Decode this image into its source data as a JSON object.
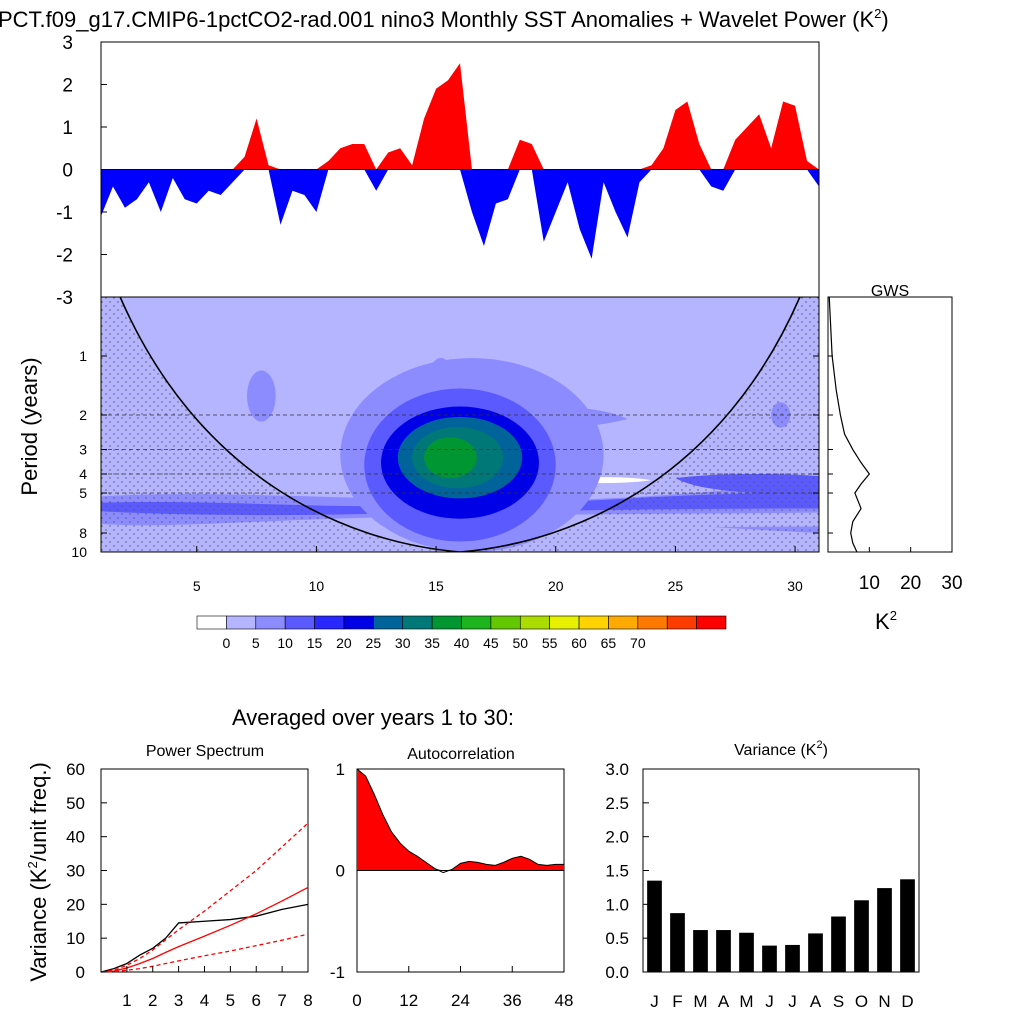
{
  "figure": {
    "title": "PCT.f09_g17.CMIP6-1pctCO2-rad.001 nino3 Monthly SST Anomalies + Wavelet Power (K",
    "title_sup": "2",
    "title_close": ")",
    "averaged_label": "Averaged over years 1 to 30:",
    "pos_color": "#ff0000",
    "neg_color": "#0000ff"
  },
  "chart_data": [
    {
      "id": "anomalies",
      "type": "area",
      "xlim": [
        1,
        31
      ],
      "ylim": [
        -3,
        3
      ],
      "yticks": [
        -3,
        -2,
        -1,
        0,
        1,
        2,
        3
      ],
      "tick_labels": [
        "-3",
        "-2",
        "-1",
        "0",
        "1",
        "2",
        "3"
      ],
      "x": [
        1.0,
        1.5,
        2.0,
        2.5,
        3.0,
        3.5,
        4.0,
        4.5,
        5.0,
        5.5,
        6.0,
        6.5,
        7.0,
        7.5,
        8.0,
        8.5,
        9.0,
        9.5,
        10.0,
        10.5,
        11.0,
        11.5,
        12.0,
        12.5,
        13.0,
        13.5,
        14.0,
        14.5,
        15.0,
        15.5,
        16.0,
        16.5,
        17.0,
        17.5,
        18.0,
        18.5,
        19.0,
        19.5,
        20.0,
        20.5,
        21.0,
        21.5,
        22.0,
        22.5,
        23.0,
        23.5,
        24.0,
        24.5,
        25.0,
        25.5,
        26.0,
        26.5,
        27.0,
        27.5,
        28.0,
        28.5,
        29.0,
        29.5,
        30.0,
        30.5,
        31.0
      ],
      "y": [
        -1.1,
        -0.4,
        -0.9,
        -0.7,
        -0.3,
        -1.0,
        -0.2,
        -0.7,
        -0.8,
        -0.5,
        -0.6,
        -0.3,
        0.3,
        1.2,
        0.1,
        -1.3,
        -0.5,
        -0.6,
        -1.0,
        0.2,
        0.5,
        0.6,
        0.6,
        -0.5,
        0.4,
        0.5,
        0.1,
        1.2,
        1.9,
        2.1,
        2.5,
        -1.0,
        -1.8,
        -0.8,
        -0.7,
        0.7,
        0.6,
        -1.7,
        -1.0,
        -0.3,
        -1.4,
        -2.1,
        -0.3,
        -1.0,
        -1.6,
        -0.3,
        0.1,
        0.5,
        1.4,
        1.6,
        0.6,
        -0.4,
        -0.5,
        0.7,
        1.0,
        1.3,
        0.5,
        1.6,
        1.5,
        0.2,
        -0.4
      ]
    },
    {
      "id": "wavelet",
      "type": "heatmap",
      "xticks": [
        5,
        10,
        15,
        20,
        25,
        30
      ],
      "xtick_labels": [
        "5",
        "10",
        "15",
        "20",
        "25",
        "30"
      ],
      "ylabel": "Period (years)",
      "yticks": [
        1,
        2,
        3,
        4,
        5,
        8,
        10
      ],
      "ytick_labels": [
        "1",
        "2",
        "3",
        "4",
        "5",
        "8",
        "10"
      ],
      "xlim": [
        1,
        31
      ],
      "ylim": [
        0.5,
        10
      ],
      "colorbar_labels": [
        "0",
        "5",
        "10",
        "15",
        "20",
        "25",
        "30",
        "35",
        "40",
        "45",
        "50",
        "55",
        "60",
        "65",
        "70"
      ],
      "colorbar_colors": [
        "#ffffff",
        "#b4b4ff",
        "#8c8cff",
        "#5a5aff",
        "#2828ff",
        "#0000e6",
        "#00649a",
        "#007878",
        "#009632",
        "#1eb41e",
        "#64c800",
        "#aadc00",
        "#e6f000",
        "#ffd200",
        "#ffaa00",
        "#ff7800",
        "#ff3c00",
        "#ff0000"
      ],
      "blobs": [
        {
          "x": 7.7,
          "period": 1.6,
          "rx": 0.6,
          "ry": 0.1,
          "level": 2
        },
        {
          "x": 15.2,
          "period": 1.3,
          "rx": 0.5,
          "ry": 0.08,
          "level": 2
        },
        {
          "x": 29.4,
          "period": 2.0,
          "rx": 0.4,
          "ry": 0.05,
          "level": 2
        },
        {
          "x": 16.5,
          "period": 3.2,
          "rx": 5.5,
          "ry": 0.38,
          "level": 2
        },
        {
          "x": 16.0,
          "period": 3.6,
          "rx": 4.0,
          "ry": 0.3,
          "level": 3
        },
        {
          "x": 16.0,
          "period": 3.5,
          "rx": 3.3,
          "ry": 0.22,
          "level": 5
        },
        {
          "x": 16.0,
          "period": 3.3,
          "rx": 2.6,
          "ry": 0.16,
          "level": 6
        },
        {
          "x": 15.9,
          "period": 3.3,
          "rx": 1.9,
          "ry": 0.12,
          "level": 7
        },
        {
          "x": 15.6,
          "period": 3.3,
          "rx": 1.1,
          "ry": 0.08,
          "level": 8
        }
      ],
      "coi_max_period": 10
    },
    {
      "id": "gws",
      "type": "line",
      "title": "GWS",
      "xlabel": "K",
      "xlabel_sup": "2",
      "xticks": [
        10,
        20,
        30
      ],
      "xtick_labels": [
        "10",
        "20",
        "30"
      ],
      "xlim": [
        0,
        30
      ],
      "period": [
        0.5,
        1.0,
        1.5,
        2.0,
        2.5,
        3.0,
        3.5,
        4.0,
        4.5,
        5.0,
        6.0,
        7.0,
        8.0,
        9.0,
        10.0
      ],
      "power": [
        0.3,
        1.0,
        2.0,
        3.0,
        4.0,
        6.0,
        8.0,
        10.0,
        8.0,
        6.5,
        8.0,
        6.0,
        5.5,
        6.0,
        7.0
      ]
    },
    {
      "id": "power_spectrum",
      "type": "line",
      "title": "Power Spectrum",
      "ylabel": "Variance (K",
      "ylabel_sup": "2",
      "ylabel_tail": "/unit freq.)",
      "xlim": [
        0,
        8
      ],
      "ylim": [
        0,
        60
      ],
      "xticks": [
        1,
        2,
        3,
        4,
        5,
        6,
        7,
        8
      ],
      "xtick_labels": [
        "1",
        "2",
        "3",
        "4",
        "5",
        "6",
        "7",
        "8"
      ],
      "yticks": [
        0,
        10,
        20,
        30,
        40,
        50,
        60
      ],
      "ytick_labels": [
        "0",
        "10",
        "20",
        "30",
        "40",
        "50",
        "60"
      ],
      "x": [
        0,
        0.5,
        1.0,
        1.5,
        2.0,
        2.5,
        3.0,
        4.0,
        5.0,
        6.0,
        7.0,
        8.0
      ],
      "series": [
        {
          "values": [
            0,
            1,
            2.5,
            5,
            7,
            10,
            14.5,
            15,
            15.5,
            16.5,
            18.5,
            20
          ],
          "color": "#000000",
          "dash": ""
        },
        {
          "values": [
            0,
            0.3,
            1.2,
            2.5,
            4,
            5.8,
            7.5,
            10.6,
            13.8,
            17.2,
            21,
            25
          ],
          "color": "#ff0000",
          "dash": ""
        },
        {
          "values": [
            0,
            0.5,
            2,
            4,
            6.5,
            9.5,
            12.5,
            18,
            24,
            30,
            37,
            44
          ],
          "color": "#ff0000",
          "dash": "4,3"
        },
        {
          "values": [
            0,
            0.1,
            0.5,
            1,
            1.7,
            2.5,
            3.3,
            4.8,
            6.2,
            7.8,
            9.4,
            11.2
          ],
          "color": "#ff0000",
          "dash": "4,3"
        }
      ]
    },
    {
      "id": "autocorrelation",
      "type": "area",
      "title": "Autocorrelation",
      "xlim": [
        0,
        48
      ],
      "ylim": [
        -1,
        1
      ],
      "xticks": [
        0,
        12,
        24,
        36,
        48
      ],
      "xtick_labels": [
        "0",
        "12",
        "24",
        "36",
        "48"
      ],
      "yticks": [
        -1,
        0,
        1
      ],
      "ytick_labels": [
        "-1",
        "0",
        "1"
      ],
      "x": [
        0,
        2,
        4,
        6,
        8,
        10,
        12,
        14,
        16,
        18,
        20,
        22,
        24,
        26,
        28,
        30,
        32,
        34,
        36,
        38,
        40,
        42,
        44,
        46,
        48
      ],
      "values": [
        1.0,
        0.93,
        0.75,
        0.55,
        0.38,
        0.27,
        0.19,
        0.14,
        0.08,
        0.02,
        -0.02,
        0.01,
        0.07,
        0.09,
        0.08,
        0.06,
        0.05,
        0.08,
        0.12,
        0.14,
        0.11,
        0.06,
        0.05,
        0.06,
        0.06
      ]
    },
    {
      "id": "variance",
      "type": "bar",
      "title": "Variance (K",
      "title_sup": "2",
      "title_close": ")",
      "categories": [
        "J",
        "F",
        "M",
        "A",
        "M",
        "J",
        "J",
        "A",
        "S",
        "O",
        "N",
        "D"
      ],
      "values": [
        1.35,
        0.87,
        0.62,
        0.62,
        0.58,
        0.39,
        0.4,
        0.57,
        0.82,
        1.06,
        1.24,
        1.37
      ],
      "ylim": [
        0,
        3.0
      ],
      "yticks": [
        0,
        0.5,
        1.0,
        1.5,
        2.0,
        2.5,
        3.0
      ],
      "ytick_labels": [
        "0.0",
        "0.5",
        "1.0",
        "1.5",
        "2.0",
        "2.5",
        "3.0"
      ]
    }
  ]
}
